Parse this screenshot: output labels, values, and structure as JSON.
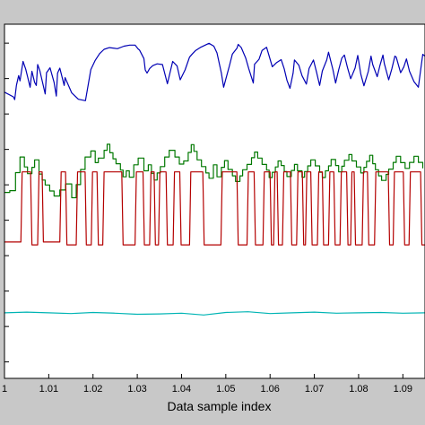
{
  "chart_data": {
    "type": "line",
    "title": "",
    "xlabel": "Data sample index",
    "ylabel": "",
    "xlim": [
      1.0,
      1.095
    ],
    "ylim": [
      0,
      1
    ],
    "grid": false,
    "legend": "none",
    "x_ticks": [
      1.0,
      1.01,
      1.02,
      1.03,
      1.04,
      1.05,
      1.06,
      1.07,
      1.08,
      1.09
    ],
    "x_tick_labels": [
      "1",
      "1.01",
      "1.02",
      "1.03",
      "1.04",
      "1.05",
      "1.06",
      "1.07",
      "1.08",
      "1.09"
    ],
    "y_ticks": [
      0.0465,
      0.1465,
      0.2465,
      0.3465,
      0.4465,
      0.5465,
      0.6465,
      0.7465,
      0.8465,
      0.9465
    ],
    "series": [
      {
        "color": "#0000b4",
        "style": "sawtooth",
        "x": [
          1.0,
          1.002,
          1.0023,
          1.0027,
          1.0032,
          1.0035,
          1.0042,
          1.0048,
          1.0053,
          1.0058,
          1.0062,
          1.0068,
          1.0072,
          1.0075,
          1.008,
          1.0092,
          1.0095,
          1.0103,
          1.0112,
          1.0117,
          1.012,
          1.0125,
          1.0135,
          1.0137,
          1.0152,
          1.0167,
          1.0183,
          1.0195,
          1.0205,
          1.0215,
          1.0225,
          1.0237,
          1.0255,
          1.027,
          1.0283,
          1.0295,
          1.0302,
          1.0305,
          1.0315,
          1.0318,
          1.0322,
          1.0328,
          1.0335,
          1.0345,
          1.0357,
          1.0368,
          1.038,
          1.039,
          1.0397,
          1.0408,
          1.0418,
          1.0425,
          1.0432,
          1.0442,
          1.0452,
          1.0462,
          1.0473,
          1.048,
          1.049,
          1.0495,
          1.0508,
          1.0515,
          1.0525,
          1.0528,
          1.0535,
          1.0545,
          1.0552,
          1.0562,
          1.0565,
          1.0575,
          1.0582,
          1.0592,
          1.0605,
          1.0615,
          1.0625,
          1.0632,
          1.0638,
          1.0645,
          1.0652,
          1.0655,
          1.0665,
          1.0672,
          1.0682,
          1.0688,
          1.0698,
          1.0705,
          1.0712,
          1.0718,
          1.0728,
          1.0732,
          1.0742,
          1.0748,
          1.0755,
          1.0762,
          1.0768,
          1.0775,
          1.0782,
          1.0792,
          1.0798,
          1.0805,
          1.0812,
          1.0822,
          1.0828,
          1.0832,
          1.0842,
          1.0848,
          1.0855,
          1.0858,
          1.0868,
          1.0875,
          1.0882,
          1.0885,
          1.0895,
          1.0902,
          1.0908,
          1.0915,
          1.0925,
          1.0935,
          1.0945,
          1.095
        ],
        "y": [
          0.808,
          0.795,
          0.787,
          0.827,
          0.855,
          0.84,
          0.895,
          0.873,
          0.847,
          0.822,
          0.867,
          0.836,
          0.827,
          0.886,
          0.868,
          0.803,
          0.863,
          0.877,
          0.836,
          0.797,
          0.862,
          0.876,
          0.827,
          0.849,
          0.806,
          0.788,
          0.784,
          0.872,
          0.898,
          0.917,
          0.929,
          0.934,
          0.931,
          0.938,
          0.941,
          0.941,
          0.93,
          0.927,
          0.903,
          0.871,
          0.862,
          0.875,
          0.883,
          0.888,
          0.886,
          0.832,
          0.895,
          0.882,
          0.843,
          0.871,
          0.907,
          0.917,
          0.926,
          0.934,
          0.94,
          0.946,
          0.938,
          0.919,
          0.862,
          0.822,
          0.882,
          0.916,
          0.932,
          0.943,
          0.934,
          0.904,
          0.874,
          0.834,
          0.887,
          0.901,
          0.926,
          0.935,
          0.88,
          0.892,
          0.9,
          0.874,
          0.842,
          0.819,
          0.862,
          0.899,
          0.884,
          0.855,
          0.831,
          0.875,
          0.899,
          0.865,
          0.827,
          0.868,
          0.899,
          0.921,
          0.872,
          0.834,
          0.871,
          0.904,
          0.913,
          0.877,
          0.846,
          0.876,
          0.912,
          0.859,
          0.826,
          0.867,
          0.91,
          0.886,
          0.852,
          0.882,
          0.913,
          0.889,
          0.843,
          0.874,
          0.91,
          0.907,
          0.863,
          0.879,
          0.902,
          0.867,
          0.838,
          0.822,
          0.915,
          0.91
        ]
      },
      {
        "color": "#007800",
        "style": "step",
        "x": [
          1.0,
          1.0012,
          1.0025,
          1.0035,
          1.0045,
          1.0052,
          1.0062,
          1.0068,
          1.0078,
          1.0085,
          1.0092,
          1.0102,
          1.0112,
          1.0125,
          1.0138,
          1.0152,
          1.0162,
          1.0172,
          1.0182,
          1.0195,
          1.0205,
          1.0212,
          1.0225,
          1.0232,
          1.0238,
          1.0245,
          1.0252,
          1.0262,
          1.0268,
          1.0275,
          1.0282,
          1.0292,
          1.0302,
          1.0315,
          1.0325,
          1.0332,
          1.0338,
          1.0345,
          1.0352,
          1.0362,
          1.0372,
          1.0385,
          1.0395,
          1.0405,
          1.0415,
          1.0422,
          1.0428,
          1.0435,
          1.0445,
          1.0455,
          1.0462,
          1.0472,
          1.048,
          1.049,
          1.0497,
          1.0505,
          1.0515,
          1.0522,
          1.0532,
          1.0538,
          1.0548,
          1.0558,
          1.0565,
          1.0572,
          1.0582,
          1.0592,
          1.0598,
          1.0605,
          1.0612,
          1.0618,
          1.0625,
          1.0632,
          1.0638,
          1.0648,
          1.0655,
          1.0662,
          1.0672,
          1.0678,
          1.0685,
          1.0692,
          1.0702,
          1.0712,
          1.0718,
          1.0725,
          1.0732,
          1.0738,
          1.0748,
          1.0755,
          1.0762,
          1.0768,
          1.0778,
          1.0785,
          1.0795,
          1.0805,
          1.0812,
          1.0818,
          1.0825,
          1.0832,
          1.0838,
          1.0845,
          1.0852,
          1.0862,
          1.0868,
          1.0878,
          1.0885,
          1.0895,
          1.0905,
          1.0915,
          1.0925,
          1.0935,
          1.0945
        ],
        "y": [
          0.525,
          0.53,
          0.581,
          0.625,
          0.597,
          0.578,
          0.596,
          0.617,
          0.577,
          0.56,
          0.546,
          0.529,
          0.515,
          0.532,
          0.549,
          0.51,
          0.547,
          0.59,
          0.625,
          0.642,
          0.609,
          0.622,
          0.644,
          0.661,
          0.637,
          0.62,
          0.606,
          0.588,
          0.569,
          0.586,
          0.568,
          0.603,
          0.622,
          0.586,
          0.603,
          0.579,
          0.56,
          0.58,
          0.598,
          0.625,
          0.644,
          0.625,
          0.605,
          0.614,
          0.638,
          0.66,
          0.641,
          0.617,
          0.598,
          0.58,
          0.565,
          0.603,
          0.569,
          0.596,
          0.615,
          0.59,
          0.572,
          0.556,
          0.572,
          0.589,
          0.604,
          0.623,
          0.639,
          0.622,
          0.604,
          0.588,
          0.567,
          0.582,
          0.597,
          0.614,
          0.601,
          0.584,
          0.57,
          0.587,
          0.604,
          0.586,
          0.568,
          0.584,
          0.6,
          0.617,
          0.6,
          0.582,
          0.567,
          0.586,
          0.6,
          0.618,
          0.601,
          0.583,
          0.599,
          0.616,
          0.632,
          0.614,
          0.597,
          0.58,
          0.596,
          0.613,
          0.63,
          0.606,
          0.589,
          0.572,
          0.559,
          0.576,
          0.591,
          0.61,
          0.627,
          0.609,
          0.593,
          0.61,
          0.627,
          0.61,
          0.593
        ]
      },
      {
        "color": "#b40000",
        "style": "switch",
        "x": [
          1.0,
          1.0005,
          1.0037,
          1.004,
          1.0059,
          1.0062,
          1.0075,
          1.0078,
          1.0085,
          1.0088,
          1.0125,
          1.0128,
          1.0138,
          1.0141,
          1.0162,
          1.0165,
          1.0182,
          1.0185,
          1.0196,
          1.0199,
          1.0209,
          1.0212,
          1.0222,
          1.0225,
          1.0265,
          1.0268,
          1.0295,
          1.0298,
          1.0313,
          1.0316,
          1.0328,
          1.0331,
          1.0338,
          1.0341,
          1.0348,
          1.0351,
          1.0365,
          1.0368,
          1.0381,
          1.0384,
          1.0396,
          1.0399,
          1.0418,
          1.0421,
          1.0448,
          1.0451,
          1.0489,
          1.0492,
          1.0525,
          1.0528,
          1.0548,
          1.0551,
          1.0564,
          1.0567,
          1.0584,
          1.0587,
          1.06,
          1.0603,
          1.0608,
          1.0611,
          1.0616,
          1.0619,
          1.0628,
          1.0631,
          1.0646,
          1.0649,
          1.066,
          1.0663,
          1.0673,
          1.0676,
          1.068,
          1.0683,
          1.0692,
          1.0695,
          1.0707,
          1.071,
          1.0718,
          1.0721,
          1.0732,
          1.0735,
          1.0744,
          1.0747,
          1.0758,
          1.0761,
          1.0773,
          1.0776,
          1.0782,
          1.0785,
          1.079,
          1.0793,
          1.0808,
          1.0811,
          1.082,
          1.0823,
          1.0836,
          1.0839,
          1.0867,
          1.087,
          1.0878,
          1.0881,
          1.0901,
          1.0904,
          1.0914,
          1.0917,
          1.094,
          1.0943,
          1.095
        ],
        "y": [
          0.385,
          0.385,
          0.385,
          0.583,
          0.583,
          0.377,
          0.377,
          0.583,
          0.583,
          0.385,
          0.385,
          0.583,
          0.583,
          0.377,
          0.377,
          0.583,
          0.583,
          0.377,
          0.377,
          0.583,
          0.583,
          0.377,
          0.377,
          0.583,
          0.583,
          0.377,
          0.377,
          0.583,
          0.583,
          0.377,
          0.377,
          0.583,
          0.583,
          0.377,
          0.377,
          0.583,
          0.583,
          0.377,
          0.377,
          0.583,
          0.583,
          0.377,
          0.377,
          0.583,
          0.583,
          0.377,
          0.377,
          0.583,
          0.583,
          0.377,
          0.377,
          0.583,
          0.583,
          0.377,
          0.377,
          0.583,
          0.583,
          0.377,
          0.377,
          0.583,
          0.583,
          0.377,
          0.377,
          0.583,
          0.583,
          0.377,
          0.377,
          0.583,
          0.583,
          0.377,
          0.377,
          0.583,
          0.583,
          0.377,
          0.377,
          0.583,
          0.583,
          0.377,
          0.377,
          0.583,
          0.583,
          0.377,
          0.377,
          0.583,
          0.583,
          0.377,
          0.377,
          0.583,
          0.583,
          0.377,
          0.377,
          0.583,
          0.583,
          0.377,
          0.377,
          0.583,
          0.583,
          0.377,
          0.377,
          0.583,
          0.583,
          0.377,
          0.377,
          0.583,
          0.583,
          0.377,
          0.377
        ]
      },
      {
        "color": "#00b4b4",
        "style": "flat",
        "x": [
          1.0,
          1.005,
          1.01,
          1.015,
          1.02,
          1.025,
          1.03,
          1.035,
          1.04,
          1.045,
          1.05,
          1.055,
          1.06,
          1.065,
          1.07,
          1.075,
          1.08,
          1.085,
          1.09,
          1.095
        ],
        "y": [
          0.185,
          0.187,
          0.185,
          0.183,
          0.186,
          0.184,
          0.181,
          0.182,
          0.184,
          0.179,
          0.186,
          0.188,
          0.183,
          0.185,
          0.187,
          0.184,
          0.185,
          0.186,
          0.184,
          0.185
        ]
      }
    ]
  }
}
